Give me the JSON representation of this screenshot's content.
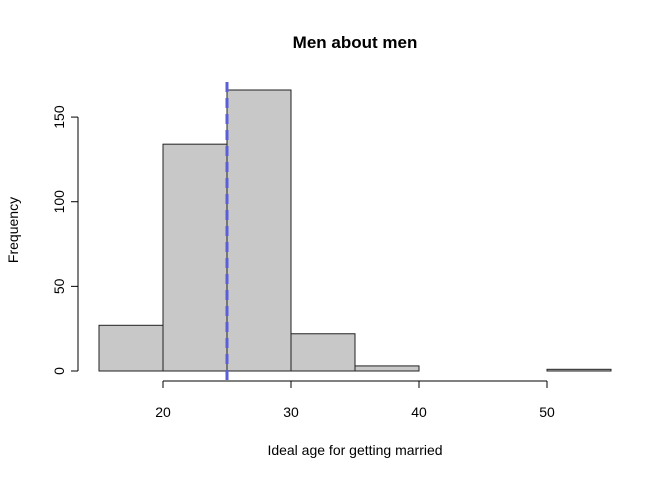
{
  "chart_data": {
    "type": "bar",
    "title": "Men about men",
    "xlabel": "Ideal age for getting married",
    "ylabel": "Frequency",
    "bins": [
      {
        "start": 15,
        "end": 20,
        "count": 27
      },
      {
        "start": 20,
        "end": 25,
        "count": 134
      },
      {
        "start": 25,
        "end": 30,
        "count": 166
      },
      {
        "start": 30,
        "end": 35,
        "count": 22
      },
      {
        "start": 35,
        "end": 40,
        "count": 3
      },
      {
        "start": 40,
        "end": 45,
        "count": 0
      },
      {
        "start": 45,
        "end": 50,
        "count": 0
      },
      {
        "start": 50,
        "end": 55,
        "count": 1
      }
    ],
    "x_ticks": [
      20,
      30,
      40,
      50
    ],
    "y_ticks": [
      0,
      50,
      100,
      150
    ],
    "xlim": [
      15,
      55
    ],
    "ylim": [
      0,
      166
    ],
    "reference_line": {
      "x": 25,
      "color": "#5b5fd6",
      "style": "dashed"
    },
    "bar_color": "#c8c8c8",
    "grid": false
  }
}
